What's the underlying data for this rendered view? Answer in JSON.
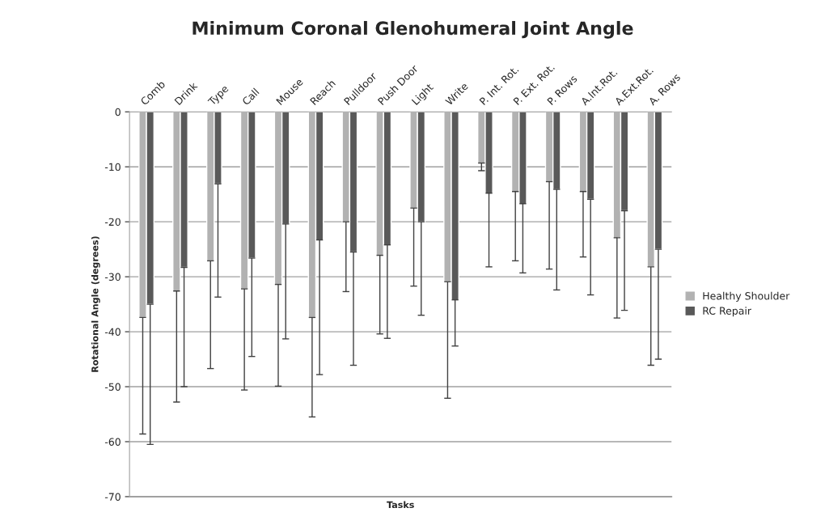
{
  "chart_data": {
    "type": "bar",
    "title": "Minimum Coronal Glenohumeral Joint Angle",
    "xlabel": "Tasks",
    "ylabel": "Rotational Angle (degrees)",
    "categories": [
      "Comb",
      "Drink",
      "Type",
      "Call",
      "Mouse",
      "Reach",
      "Pulldoor",
      "Push Door",
      "Light",
      "Write",
      "P. Int. Rot.",
      "P. Ext. Rot.",
      "P. Rows",
      "A.Int.Rot.",
      "A.Ext.Rot.",
      "A. Rows"
    ],
    "series": [
      {
        "name": "Healthy Shoulder",
        "color": "#b2b2b2",
        "values": [
          -37.4,
          -32.6,
          -27.1,
          -32.2,
          -31.4,
          -37.4,
          -20.0,
          -26.1,
          -17.5,
          -30.9,
          -9.3,
          -14.5,
          -12.7,
          -14.5,
          -22.9,
          -28.2
        ],
        "errors": [
          [
            -58.6,
            -37.4
          ],
          [
            -52.8,
            -32.6
          ],
          [
            -46.7,
            -27.1
          ],
          [
            -50.6,
            -32.2
          ],
          [
            -49.9,
            -31.4
          ],
          [
            -55.5,
            -37.4
          ],
          [
            -32.7,
            -20.0
          ],
          [
            -40.4,
            -26.1
          ],
          [
            -31.7,
            -17.5
          ],
          [
            -52.1,
            -30.9
          ],
          [
            -10.7,
            -9.3
          ],
          [
            -27.1,
            -14.5
          ],
          [
            -28.6,
            -12.7
          ],
          [
            -26.4,
            -14.5
          ],
          [
            -37.5,
            -22.9
          ],
          [
            -46.1,
            -28.2
          ]
        ]
      },
      {
        "name": "RC Repair",
        "color": "#595959",
        "values": [
          -35.0,
          -28.3,
          -13.1,
          -26.6,
          -20.4,
          -23.3,
          -25.5,
          -24.2,
          -20.0,
          -34.2,
          -14.8,
          -16.7,
          -14.1,
          -15.9,
          -18.0,
          -25.0
        ],
        "errors": [
          [
            -60.5,
            -35.0
          ],
          [
            -50.0,
            -28.3
          ],
          [
            -33.7,
            -13.1
          ],
          [
            -44.5,
            -26.6
          ],
          [
            -41.3,
            -20.4
          ],
          [
            -47.8,
            -23.3
          ],
          [
            -46.1,
            -25.5
          ],
          [
            -41.2,
            -24.2
          ],
          [
            -37.0,
            -20.0
          ],
          [
            -42.6,
            -34.2
          ],
          [
            -28.2,
            -14.8
          ],
          [
            -29.3,
            -16.7
          ],
          [
            -32.4,
            -14.1
          ],
          [
            -33.3,
            -15.9
          ],
          [
            -36.1,
            -18.0
          ],
          [
            -45.0,
            -25.0
          ]
        ]
      }
    ],
    "ylim": [
      -70,
      0
    ],
    "yticks": [
      -70,
      -60,
      -50,
      -40,
      -30,
      -20,
      -10,
      0
    ],
    "grid": "y",
    "legend": "right"
  }
}
